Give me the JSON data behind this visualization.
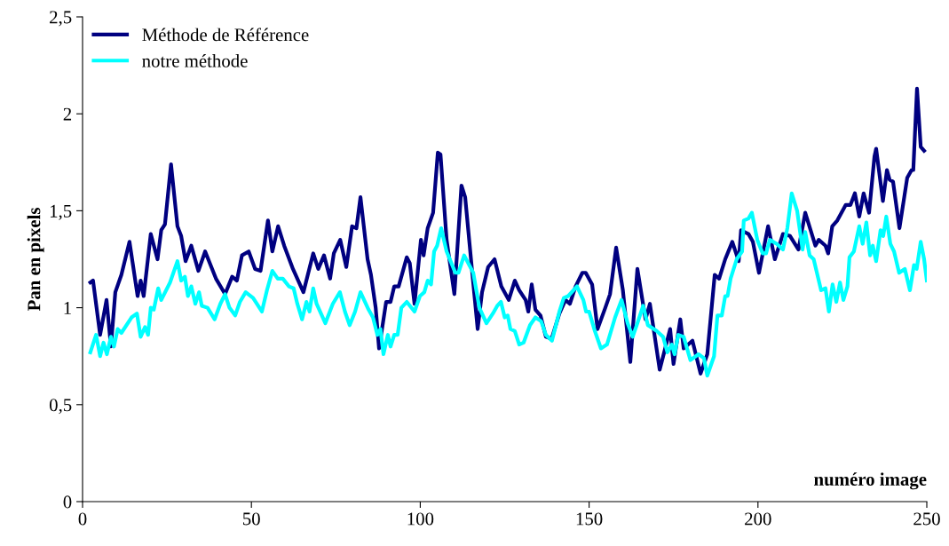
{
  "chart_data": {
    "type": "line",
    "xlabel": "numéro image",
    "ylabel": "Pan en pixels",
    "xlim": [
      0,
      250
    ],
    "xticks": [
      0,
      50,
      100,
      150,
      200,
      250
    ],
    "ylim": [
      0,
      2.5
    ],
    "yticks": [
      0,
      {
        "value": 0.5,
        "label": "0,5"
      },
      1,
      {
        "value": 1.5,
        "label": "1,5"
      },
      2,
      {
        "value": 2.5,
        "label": "2,5"
      }
    ],
    "grid": false,
    "legend": "top left",
    "marker": "none",
    "line_style": "solid",
    "series": [
      {
        "name": "Méthode de Référence",
        "color": "#000080",
        "x": [
          2.3,
          3.1,
          5.2,
          7.1,
          8.4,
          9.7,
          11.5,
          13.9,
          16.3,
          17.2,
          18.1,
          20.2,
          22.2,
          23.3,
          24.4,
          26.2,
          28.1,
          29.2,
          30.5,
          32.2,
          34.3,
          36.3,
          39.5,
          42.2,
          44.3,
          45.7,
          47.2,
          49.2,
          51.1,
          52.7,
          54.9,
          56.2,
          57.9,
          59.7,
          62.3,
          64.1,
          65.4,
          68.3,
          69.8,
          71.5,
          73.3,
          74.4,
          76.3,
          78.1,
          79.8,
          81.1,
          82.3,
          84.4,
          85.4,
          86.8,
          87.8,
          89.9,
          91.2,
          92.3,
          93.6,
          96,
          96.9,
          98.3,
          100.2,
          101,
          102.2,
          103.8,
          105.2,
          106,
          107.8,
          110.1,
          112.2,
          113.3,
          115.4,
          117,
          118.3,
          120.1,
          122,
          124,
          126.2,
          128,
          129.3,
          131.2,
          132,
          133,
          134.1,
          135.6,
          137.2,
          138.9,
          141.2,
          143,
          144.3,
          146,
          148,
          149,
          150.9,
          152.5,
          154.8,
          156.2,
          158,
          160,
          162.2,
          164.3,
          166.7,
          168,
          170.9,
          174,
          175,
          177,
          178,
          180.6,
          183,
          185,
          187.2,
          188.5,
          190.3,
          192.4,
          194.3,
          195,
          197.2,
          198.5,
          200.3,
          203,
          205,
          207.4,
          209.5,
          212,
          214,
          217,
          218,
          220,
          220.8,
          222,
          223.5,
          226,
          227.4,
          228.7,
          230,
          231.3,
          232.9,
          234.5,
          235,
          237,
          238.2,
          239,
          240,
          241.9,
          244.2,
          245.5,
          246,
          247.1,
          248.2,
          249.2
        ],
        "values": [
          1.13,
          1.14,
          0.86,
          1.04,
          0.8,
          1.08,
          1.17,
          1.34,
          1.06,
          1.14,
          1.06,
          1.38,
          1.25,
          1.4,
          1.43,
          1.74,
          1.42,
          1.37,
          1.24,
          1.32,
          1.19,
          1.29,
          1.15,
          1.07,
          1.16,
          1.14,
          1.27,
          1.29,
          1.2,
          1.19,
          1.45,
          1.29,
          1.42,
          1.32,
          1.2,
          1.13,
          1.08,
          1.28,
          1.2,
          1.27,
          1.15,
          1.28,
          1.35,
          1.21,
          1.42,
          1.41,
          1.57,
          1.25,
          1.17,
          1.0,
          0.79,
          1.03,
          1.03,
          1.11,
          1.11,
          1.26,
          1.23,
          1.02,
          1.35,
          1.27,
          1.41,
          1.49,
          1.8,
          1.79,
          1.35,
          1.07,
          1.63,
          1.57,
          1.18,
          0.89,
          1.08,
          1.21,
          1.25,
          1.11,
          1.04,
          1.14,
          1.09,
          1.04,
          0.98,
          1.12,
          0.99,
          0.96,
          0.85,
          0.84,
          0.97,
          1.04,
          1.02,
          1.11,
          1.18,
          1.18,
          1.12,
          0.89,
          1.0,
          1.07,
          1.31,
          1.09,
          0.72,
          1.2,
          0.94,
          1.02,
          0.68,
          0.89,
          0.71,
          0.94,
          0.79,
          0.83,
          0.66,
          0.76,
          1.17,
          1.15,
          1.25,
          1.34,
          1.24,
          1.4,
          1.38,
          1.34,
          1.18,
          1.42,
          1.25,
          1.38,
          1.37,
          1.3,
          1.49,
          1.32,
          1.35,
          1.32,
          1.28,
          1.42,
          1.45,
          1.53,
          1.53,
          1.59,
          1.47,
          1.59,
          1.49,
          1.78,
          1.82,
          1.55,
          1.71,
          1.66,
          1.65,
          1.41,
          1.67,
          1.71,
          1.71,
          2.13,
          1.83,
          1.81
        ]
      },
      {
        "name": "notre méthode",
        "color": "#00ffff",
        "x": [
          2.3,
          4,
          5.2,
          6.2,
          7.2,
          8.4,
          9.3,
          10.4,
          11.5,
          14.5,
          16.1,
          17.2,
          18.5,
          19.4,
          20.2,
          21.1,
          22.4,
          23.3,
          25.9,
          28.1,
          29.2,
          30.3,
          31.2,
          32.2,
          33.4,
          34.5,
          35.3,
          37,
          39.1,
          40.8,
          42.2,
          43.5,
          45.2,
          46.6,
          48.3,
          50.5,
          53.1,
          54.6,
          56.2,
          57.8,
          59.3,
          61.1,
          62.5,
          63.6,
          65,
          66.3,
          67.2,
          68.3,
          69.3,
          71.9,
          74.1,
          76.2,
          77.7,
          79.1,
          80.7,
          82.3,
          84.7,
          86,
          87.3,
          88.2,
          89.1,
          90.4,
          91.2,
          92.3,
          93.3,
          94.4,
          96,
          98.3,
          99.9,
          101.2,
          102.2,
          103.2,
          104.1,
          105,
          106.2,
          107.8,
          110.4,
          111.3,
          113,
          115.7,
          117.5,
          119.6,
          121.5,
          122.8,
          123.9,
          125,
          125.9,
          126.7,
          128,
          129.3,
          130.6,
          132.5,
          134.1,
          135.8,
          137.2,
          139,
          141.2,
          142.5,
          143.8,
          146.4,
          148.3,
          149.1,
          150,
          151.7,
          153.5,
          155.3,
          157.7,
          159.6,
          161.4,
          162.9,
          164.3,
          166,
          167.4,
          170,
          171.9,
          173.2,
          174.5,
          175.3,
          176.4,
          178,
          180,
          182.4,
          184,
          185,
          187,
          188,
          189.3,
          190.3,
          191,
          191.9,
          193.7,
          195.3,
          195.8,
          197.2,
          198.2,
          199.8,
          201.4,
          202.4,
          203.5,
          205.5,
          207.4,
          208.7,
          210,
          211.6,
          213.2,
          214,
          215.3,
          216.5,
          218.7,
          220,
          221,
          222.1,
          223.2,
          224.3,
          225.3,
          226.5,
          227.1,
          228.4,
          230,
          231,
          232.1,
          233.2,
          234,
          235,
          236.3,
          237.1,
          238,
          239.2,
          240.3,
          241.8,
          243.5,
          245,
          246.2,
          247,
          248.2,
          249.2,
          250
        ],
        "values": [
          0.77,
          0.86,
          0.75,
          0.82,
          0.76,
          0.85,
          0.8,
          0.89,
          0.87,
          0.95,
          0.97,
          0.85,
          0.9,
          0.86,
          1.0,
          0.99,
          1.1,
          1.04,
          1.13,
          1.24,
          1.14,
          1.16,
          1.06,
          1.11,
          1.02,
          1.08,
          1.01,
          1.0,
          0.94,
          1.02,
          1.07,
          1.0,
          0.96,
          1.03,
          1.08,
          1.05,
          0.98,
          1.09,
          1.19,
          1.15,
          1.15,
          1.11,
          1.1,
          1.02,
          0.94,
          1.03,
          0.98,
          1.1,
          1.02,
          0.92,
          1.02,
          1.08,
          0.98,
          0.91,
          0.98,
          1.08,
          0.99,
          0.95,
          0.86,
          0.89,
          0.76,
          0.86,
          0.8,
          0.86,
          0.86,
          1.0,
          1.03,
          0.98,
          1.06,
          1.08,
          1.14,
          1.12,
          1.29,
          1.32,
          1.41,
          1.29,
          1.18,
          1.18,
          1.27,
          1.18,
          1.0,
          0.92,
          0.97,
          1.01,
          1.03,
          0.95,
          0.96,
          0.89,
          0.88,
          0.81,
          0.82,
          0.91,
          0.95,
          0.93,
          0.86,
          0.83,
          0.98,
          1.05,
          1.06,
          1.11,
          1.04,
          0.98,
          0.98,
          0.88,
          0.79,
          0.81,
          0.95,
          1.04,
          0.92,
          0.85,
          0.92,
          1.01,
          0.91,
          0.88,
          0.85,
          0.77,
          0.81,
          0.76,
          0.86,
          0.85,
          0.73,
          0.76,
          0.74,
          0.65,
          0.75,
          0.96,
          0.96,
          1.06,
          1.06,
          1.15,
          1.25,
          1.29,
          1.45,
          1.46,
          1.49,
          1.35,
          1.28,
          1.28,
          1.35,
          1.33,
          1.3,
          1.41,
          1.59,
          1.5,
          1.3,
          1.39,
          1.27,
          1.25,
          1.09,
          1.1,
          0.98,
          1.12,
          1.03,
          1.13,
          1.04,
          1.11,
          1.26,
          1.29,
          1.42,
          1.33,
          1.44,
          1.27,
          1.32,
          1.24,
          1.4,
          1.37,
          1.47,
          1.33,
          1.29,
          1.18,
          1.2,
          1.09,
          1.22,
          1.2,
          1.34,
          1.25,
          1.14
        ]
      }
    ]
  }
}
